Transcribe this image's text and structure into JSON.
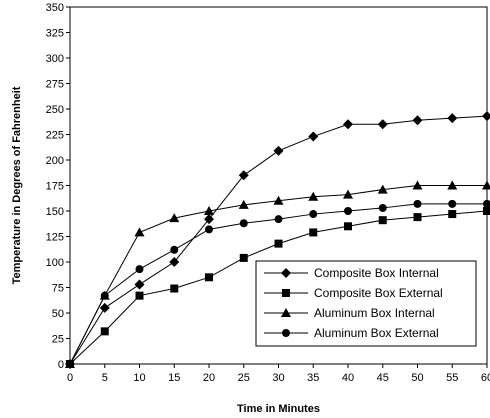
{
  "chart_data": {
    "type": "line",
    "xlabel": "Time in Minutes",
    "ylabel": "Temperature in Degrees of Fahrenheit",
    "xlim": [
      0,
      60
    ],
    "ylim": [
      0,
      350
    ],
    "x_ticks": [
      0,
      5,
      10,
      15,
      20,
      25,
      30,
      35,
      40,
      45,
      50,
      55,
      60
    ],
    "y_ticks": [
      0,
      25,
      50,
      75,
      100,
      125,
      150,
      175,
      200,
      225,
      250,
      275,
      300,
      325,
      350
    ],
    "grid": false,
    "legend_position": "bottom-right",
    "x": [
      0,
      5,
      10,
      15,
      20,
      25,
      30,
      35,
      40,
      45,
      50,
      55,
      60
    ],
    "series": [
      {
        "name": "Composite Box Internal",
        "marker": "diamond",
        "color": "#000000",
        "values": [
          0,
          55,
          78,
          100,
          142,
          185,
          209,
          223,
          235,
          235,
          239,
          241,
          243
        ]
      },
      {
        "name": "Composite Box External",
        "marker": "square",
        "color": "#000000",
        "values": [
          0,
          32,
          67,
          74,
          85,
          104,
          118,
          129,
          135,
          141,
          144,
          147,
          150
        ]
      },
      {
        "name": "Aluminum Box Internal",
        "marker": "triangle",
        "color": "#000000",
        "values": [
          0,
          67,
          129,
          143,
          150,
          156,
          160,
          164,
          166,
          171,
          175,
          175,
          175
        ]
      },
      {
        "name": "Aluminum Box External",
        "marker": "circle",
        "color": "#000000",
        "values": [
          0,
          67,
          93,
          112,
          132,
          138,
          142,
          147,
          150,
          153,
          157,
          157,
          157
        ]
      }
    ]
  }
}
